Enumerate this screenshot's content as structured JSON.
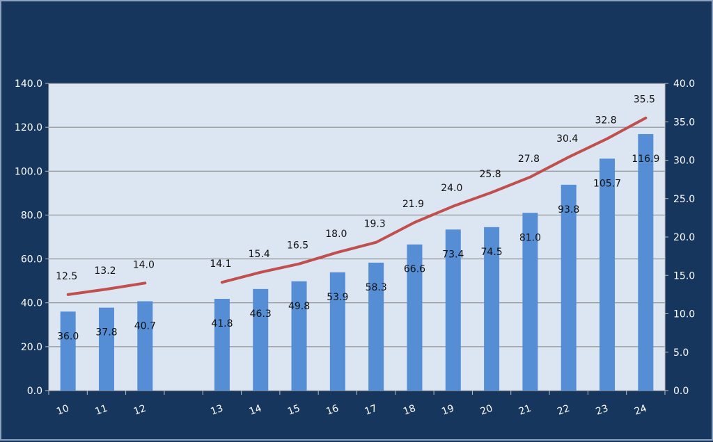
{
  "colors": {
    "background": "#17365d",
    "plot_background": "#dce6f2",
    "bar": "#558ed5",
    "line": "#c0504d",
    "gridline": "#7f7f7f",
    "tick_text": "#ffffff",
    "data_label_text": "#111111"
  },
  "chart_data": {
    "type": "bar",
    "title": "",
    "xlabel": "",
    "ylabel": "",
    "y2label": "",
    "categories": [
      "10",
      "11",
      "12",
      "",
      "13",
      "14",
      "15",
      "16",
      "17",
      "18",
      "19",
      "20",
      "21",
      "22",
      "23",
      "24"
    ],
    "series": [
      {
        "type": "bar",
        "axis": "left",
        "values": [
          36.0,
          37.8,
          40.7,
          null,
          41.8,
          46.3,
          49.8,
          53.9,
          58.3,
          66.6,
          73.4,
          74.5,
          81.0,
          93.8,
          105.7,
          116.9
        ],
        "labels": [
          "36.0",
          "37.8",
          "40.7",
          "",
          "41.8",
          "46.3",
          "49.8",
          "53.9",
          "58.3",
          "66.6",
          "73.4",
          "74.5",
          "81.0",
          "93.8",
          "105.7",
          "116.9"
        ]
      },
      {
        "type": "line",
        "axis": "right",
        "values": [
          12.5,
          13.2,
          14.0,
          null,
          14.1,
          15.4,
          16.5,
          18.0,
          19.3,
          21.9,
          24.0,
          25.8,
          27.8,
          30.4,
          32.8,
          35.5
        ],
        "labels": [
          "12.5",
          "13.2",
          "14.0",
          "",
          "14.1",
          "15.4",
          "16.5",
          "18.0",
          "19.3",
          "21.9",
          "24.0",
          "25.8",
          "27.8",
          "30.4",
          "32.8",
          "35.5"
        ]
      }
    ],
    "y_left": {
      "lim": [
        0,
        140
      ],
      "ticks": [
        "0.0",
        "20.0",
        "40.0",
        "60.0",
        "80.0",
        "100.0",
        "120.0",
        "140.0"
      ]
    },
    "y_right": {
      "lim": [
        0,
        40
      ],
      "ticks": [
        "0.0",
        "5.0",
        "10.0",
        "15.0",
        "20.0",
        "25.0",
        "30.0",
        "35.0",
        "40.0"
      ]
    },
    "grid": true,
    "legend": "none"
  }
}
